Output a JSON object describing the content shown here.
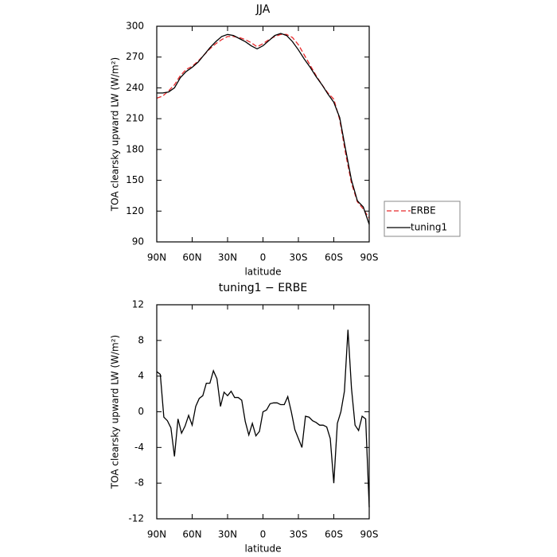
{
  "chart_data": [
    {
      "type": "line",
      "title": "JJA",
      "x_label": "latitude",
      "y_label": "TOA clearsky upward LW (W/m²)",
      "x": [
        90,
        85,
        80,
        75,
        70,
        65,
        60,
        55,
        50,
        45,
        40,
        35,
        30,
        25,
        20,
        15,
        10,
        5,
        0,
        -5,
        -10,
        -15,
        -20,
        -25,
        -30,
        -35,
        -40,
        -45,
        -50,
        -55,
        -60,
        -65,
        -70,
        -75,
        -80,
        -85,
        -90
      ],
      "series": [
        {
          "name": "ERBE",
          "color": "#e8292b",
          "dash": true,
          "values": [
            230,
            232,
            237,
            243,
            252,
            258,
            261,
            266,
            272,
            278,
            283,
            287,
            290,
            290,
            289,
            287,
            284,
            280,
            283,
            287,
            290,
            292,
            292,
            289,
            282,
            272,
            262,
            252,
            243,
            235,
            229,
            209,
            176,
            147,
            129,
            122,
            113
          ]
        },
        {
          "name": "tuning1",
          "color": "#000000",
          "dash": false,
          "values": [
            235,
            235,
            236,
            240,
            250,
            256,
            260,
            265,
            272,
            279,
            285,
            290,
            292,
            291,
            288,
            285,
            281,
            278,
            281,
            286,
            291,
            293,
            291,
            285,
            277,
            268,
            260,
            251,
            243,
            234,
            226,
            211,
            180,
            150,
            130,
            124,
            107
          ]
        }
      ],
      "xlim": [
        90,
        -90
      ],
      "xticks": [
        {
          "value": 90,
          "label": "90N"
        },
        {
          "value": 60,
          "label": "60N"
        },
        {
          "value": 30,
          "label": "30N"
        },
        0,
        {
          "value": -30,
          "label": "30S"
        },
        {
          "value": -60,
          "label": "60S"
        },
        {
          "value": -90,
          "label": "90S"
        }
      ],
      "ylim": [
        90,
        300
      ],
      "yticks": [
        90,
        120,
        150,
        180,
        210,
        240,
        270,
        300
      ],
      "legend": "right"
    },
    {
      "type": "line",
      "title": "tuning1 − ERBE",
      "x_label": "latitude",
      "y_label": "TOA clearsky upward LW (W/m²)",
      "x": [
        90,
        87,
        84,
        81,
        78,
        75,
        72,
        69,
        66,
        63,
        60,
        57,
        54,
        51,
        48,
        45,
        42,
        39,
        36,
        33,
        30,
        27,
        24,
        21,
        18,
        15,
        12,
        9,
        6,
        3,
        0,
        -3,
        -6,
        -9,
        -12,
        -15,
        -18,
        -21,
        -24,
        -27,
        -30,
        -33,
        -36,
        -39,
        -42,
        -45,
        -48,
        -51,
        -54,
        -57,
        -60,
        -63,
        -66,
        -69,
        -72,
        -75,
        -78,
        -81,
        -84,
        -87,
        -90
      ],
      "series": [
        {
          "color": "#000000",
          "dash": false,
          "values": [
            4.5,
            4.2,
            -0.6,
            -1,
            -1.8,
            -5,
            -0.8,
            -2.4,
            -1.6,
            -0.4,
            -1.5,
            0.6,
            1.5,
            1.8,
            3.2,
            3.2,
            4.6,
            3.7,
            0.6,
            2.2,
            1.8,
            2.3,
            1.6,
            1.6,
            1.3,
            -1.1,
            -2.6,
            -1.3,
            -2.7,
            -2.2,
            0,
            0.2,
            0.9,
            1,
            1,
            0.8,
            0.8,
            1.7,
            0,
            -2,
            -3,
            -4,
            -0.5,
            -0.6,
            -1.0,
            -1.2,
            -1.5,
            -1.5,
            -1.7,
            -3,
            -8,
            -1.3,
            0,
            2.3,
            9.2,
            2.6,
            -1.5,
            -2.1,
            -0.5,
            -0.8,
            -10.7
          ]
        }
      ],
      "xlim": [
        90,
        -90
      ],
      "xticks": [
        {
          "value": 90,
          "label": "90N"
        },
        {
          "value": 60,
          "label": "60N"
        },
        {
          "value": 30,
          "label": "30N"
        },
        0,
        {
          "value": -30,
          "label": "30S"
        },
        {
          "value": -60,
          "label": "60S"
        },
        {
          "value": -90,
          "label": "90S"
        }
      ],
      "ylim": [
        -12,
        12
      ],
      "yticks": [
        -12,
        -8,
        -4,
        0,
        4,
        8,
        12
      ]
    }
  ]
}
